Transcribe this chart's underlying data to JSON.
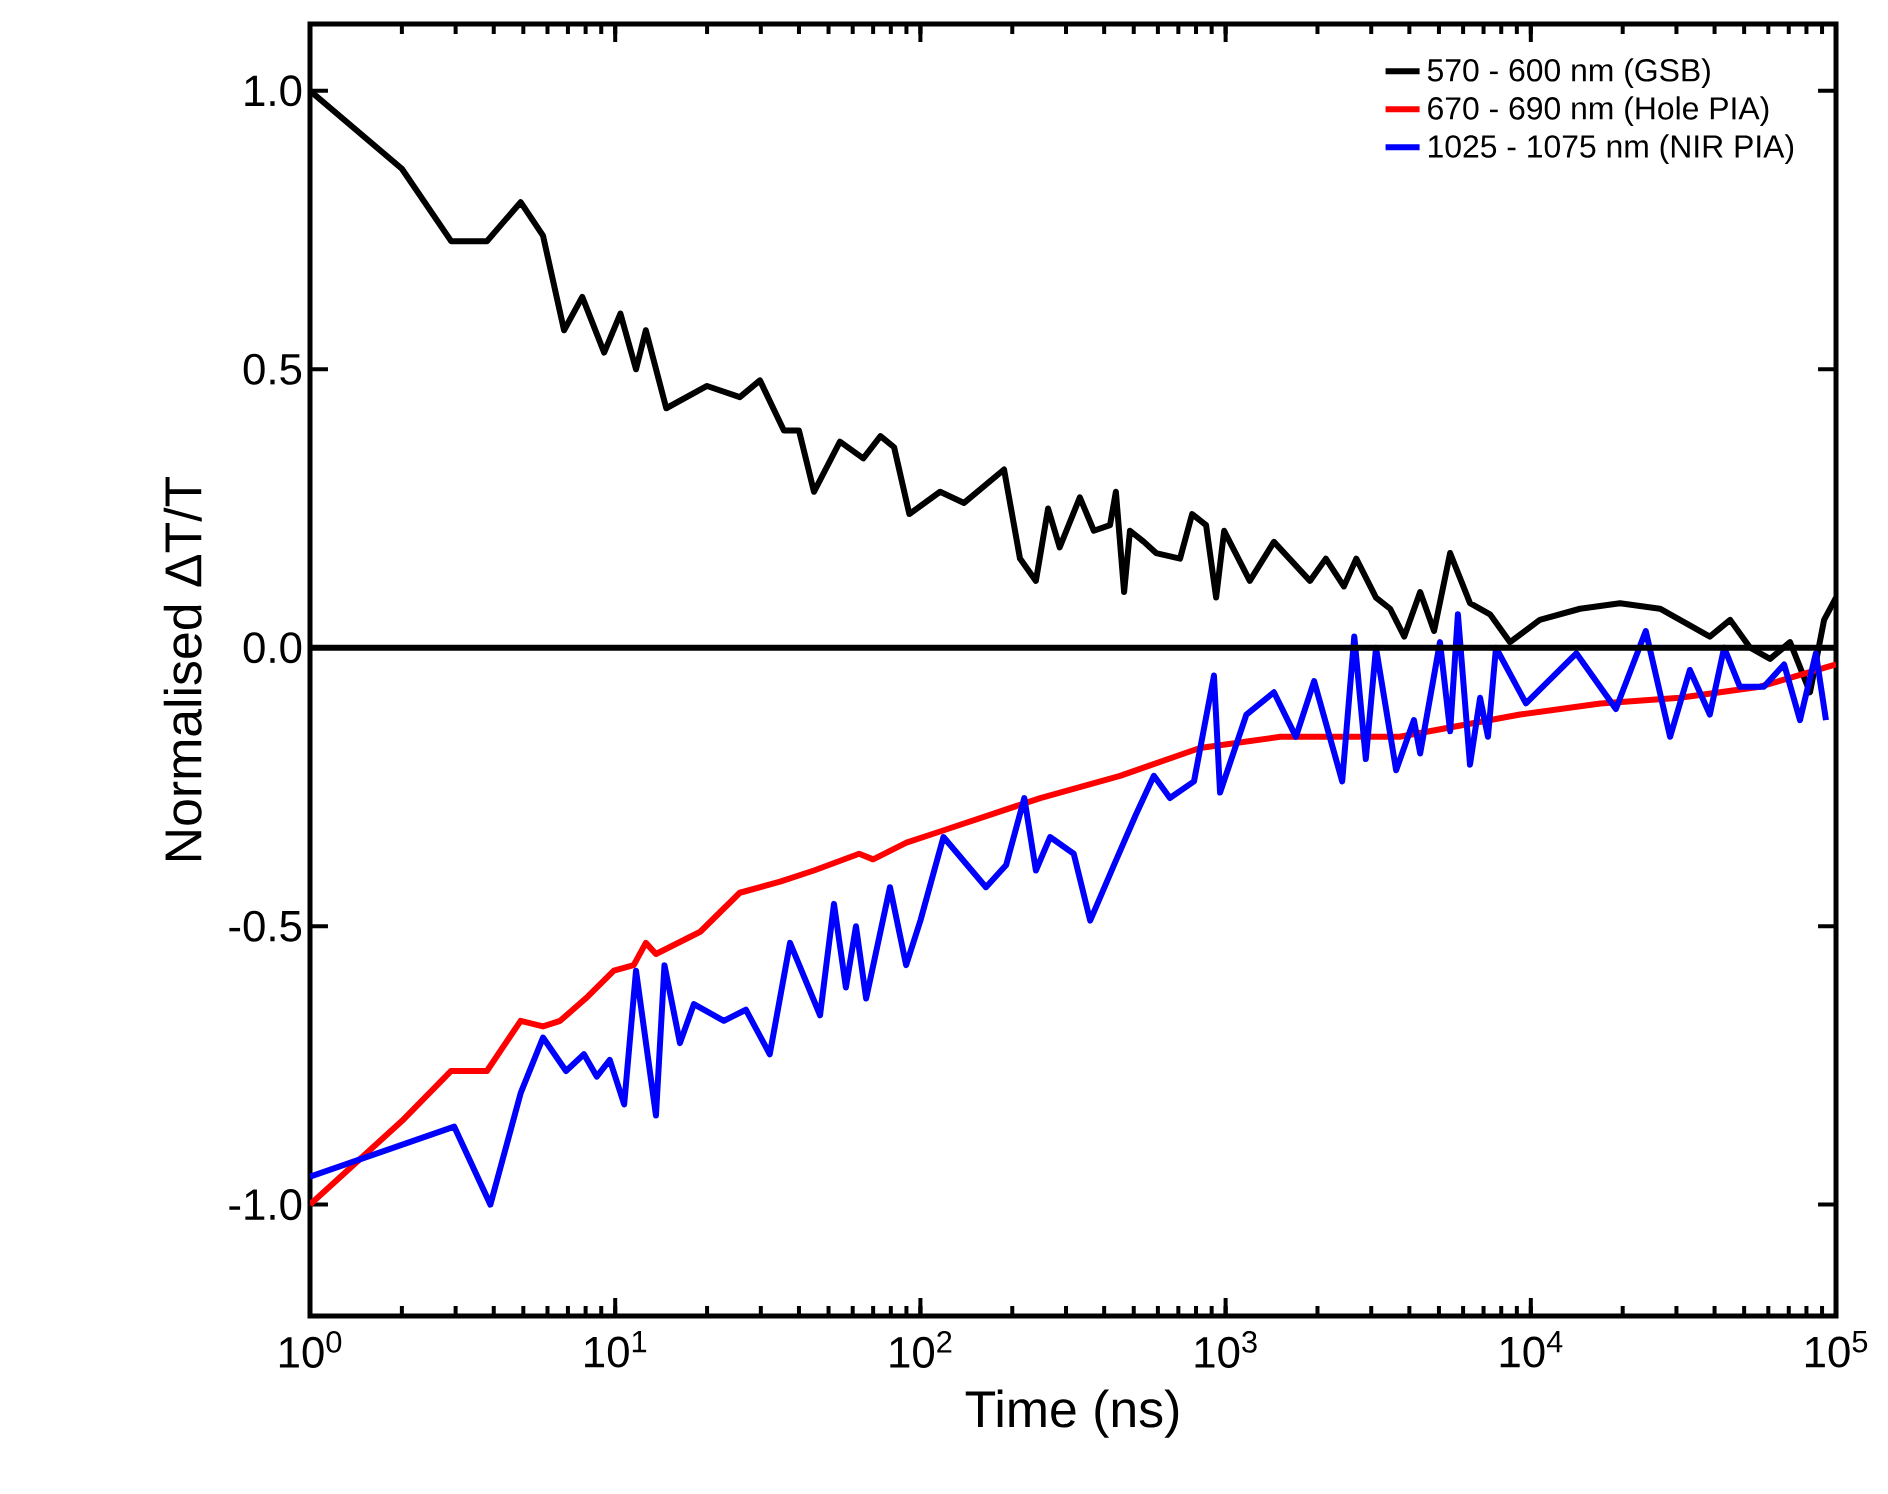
{
  "chart_data": {
    "type": "line",
    "xlabel": "Time (ns)",
    "ylabel": "Normalised ΔT/T",
    "log": "x",
    "legend": "top right",
    "xlim": [
      1,
      100000
    ],
    "ylim": [
      -1.2,
      1.12
    ],
    "xticks": [
      {
        "value": 1,
        "label": "10$^{0}$"
      },
      {
        "value": 10,
        "label": "10$^{1}$"
      },
      {
        "value": 100,
        "label": "10$^{2}$"
      },
      {
        "value": 1000,
        "label": "10$^{3}$"
      },
      {
        "value": 10000,
        "label": "10$^{4}$"
      },
      {
        "value": 100000,
        "label": "10$^{5}$"
      }
    ],
    "yticks": [
      {
        "value": -1,
        "label": "-1.0"
      },
      {
        "value": -0.5,
        "label": "-0.5"
      },
      {
        "value": 0,
        "label": "0.0"
      },
      {
        "value": 0.5,
        "label": "0.5"
      },
      {
        "value": 1,
        "label": "1.0"
      }
    ],
    "ref_lines": [
      {
        "axis": "y",
        "value": 0,
        "color": "#000000"
      }
    ],
    "series": [
      {
        "name": "570 - 600 nm (GSB)",
        "color": "#000000",
        "x": [
          1,
          2,
          2.9,
          3.8,
          4.9,
          5.8,
          6.8,
          7.8,
          9.2,
          10.4,
          11.7,
          12.6,
          14.7,
          20,
          25.6,
          29.8,
          35.7,
          40,
          44.8,
          54.5,
          65,
          74,
          82,
          92,
          116,
          139,
          188,
          212,
          239,
          262,
          286,
          333,
          370,
          418,
          437,
          465,
          486,
          540,
          592,
          709,
          777,
          863,
          931,
          989,
          1200,
          1440,
          1890,
          2130,
          2440,
          2680,
          3110,
          3460,
          3850,
          4340,
          4820,
          5440,
          6320,
          7350,
          8550,
          10700,
          14500,
          19600,
          26500,
          33200,
          38600,
          45000,
          52300,
          60800,
          70700,
          82200,
          91400,
          100000
        ],
        "values": [
          1.0,
          0.86,
          0.73,
          0.73,
          0.8,
          0.74,
          0.57,
          0.63,
          0.53,
          0.6,
          0.5,
          0.57,
          0.43,
          0.47,
          0.45,
          0.48,
          0.39,
          0.39,
          0.28,
          0.37,
          0.34,
          0.38,
          0.36,
          0.24,
          0.28,
          0.26,
          0.32,
          0.16,
          0.12,
          0.25,
          0.18,
          0.27,
          0.21,
          0.22,
          0.28,
          0.1,
          0.21,
          0.19,
          0.17,
          0.16,
          0.24,
          0.22,
          0.09,
          0.21,
          0.12,
          0.19,
          0.12,
          0.16,
          0.11,
          0.16,
          0.09,
          0.07,
          0.02,
          0.1,
          0.03,
          0.17,
          0.08,
          0.06,
          0.01,
          0.05,
          0.07,
          0.08,
          0.07,
          0.04,
          0.02,
          0.05,
          0.0,
          -0.02,
          0.01,
          -0.08,
          0.05,
          0.09
        ]
      },
      {
        "name": "670 - 690 nm (Hole PIA)",
        "color": "#ff0000",
        "x": [
          1,
          2,
          2.9,
          3.8,
          4.9,
          5.8,
          6.6,
          8,
          9.9,
          11.5,
          12.6,
          13.6,
          19,
          25.6,
          34.7,
          44.8,
          63,
          70,
          90,
          116,
          247,
          451,
          824,
          1510,
          3720,
          9220,
          16900,
          30800,
          56400,
          100000
        ],
        "values": [
          -1.0,
          -0.85,
          -0.76,
          -0.76,
          -0.67,
          -0.68,
          -0.67,
          -0.63,
          -0.58,
          -0.57,
          -0.53,
          -0.55,
          -0.51,
          -0.44,
          -0.42,
          -0.4,
          -0.37,
          -0.38,
          -0.35,
          -0.33,
          -0.27,
          -0.23,
          -0.18,
          -0.16,
          -0.16,
          -0.12,
          -0.1,
          -0.09,
          -0.07,
          -0.03
        ]
      },
      {
        "name": "1025 - 1075 nm (NIR PIA)",
        "color": "#0000ff",
        "x": [
          1,
          2.97,
          3.9,
          4.9,
          5.8,
          6.9,
          7.9,
          8.7,
          9.6,
          10.7,
          11.7,
          13.6,
          14.5,
          16.3,
          18.1,
          22.7,
          26.8,
          32.1,
          37.4,
          46.9,
          52.1,
          57,
          61.5,
          66.4,
          79.5,
          89.8,
          100,
          119,
          164,
          191,
          219,
          239,
          266,
          318,
          360,
          431,
          508,
          582,
          657,
          788,
          916,
          959,
          1170,
          1440,
          1700,
          1950,
          2410,
          2640,
          2880,
          3110,
          3620,
          4140,
          4340,
          5040,
          5440,
          5770,
          6320,
          6820,
          7240,
          7690,
          9640,
          14100,
          19000,
          23800,
          28600,
          33200,
          38600,
          43000,
          48400,
          58000,
          67600,
          76200,
          85900,
          92700
        ],
        "values": [
          -0.95,
          -0.86,
          -1.0,
          -0.8,
          -0.7,
          -0.76,
          -0.73,
          -0.77,
          -0.74,
          -0.82,
          -0.58,
          -0.84,
          -0.57,
          -0.71,
          -0.64,
          -0.67,
          -0.65,
          -0.73,
          -0.53,
          -0.66,
          -0.46,
          -0.61,
          -0.5,
          -0.63,
          -0.43,
          -0.57,
          -0.49,
          -0.34,
          -0.43,
          -0.39,
          -0.27,
          -0.4,
          -0.34,
          -0.37,
          -0.49,
          -0.39,
          -0.3,
          -0.23,
          -0.27,
          -0.24,
          -0.05,
          -0.26,
          -0.12,
          -0.08,
          -0.16,
          -0.06,
          -0.24,
          0.02,
          -0.2,
          0.0,
          -0.22,
          -0.13,
          -0.19,
          0.01,
          -0.15,
          0.06,
          -0.21,
          -0.09,
          -0.16,
          0.0,
          -0.1,
          -0.01,
          -0.11,
          0.03,
          -0.16,
          -0.04,
          -0.12,
          0.0,
          -0.07,
          -0.07,
          -0.03,
          -0.13,
          -0.01,
          -0.13
        ]
      }
    ]
  }
}
